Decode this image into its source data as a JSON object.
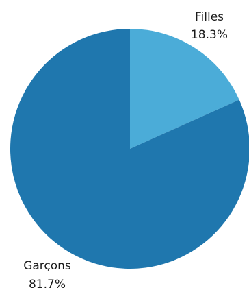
{
  "chart_data": {
    "type": "pie",
    "title": "",
    "start_angle": "12 o'clock, clockwise",
    "slices": [
      {
        "label": "Filles",
        "value": 18.3,
        "value_label": "18.3%",
        "color": "#4BACD8"
      },
      {
        "label": "Garçons",
        "value": 81.7,
        "value_label": "81.7%",
        "color": "#1F77AE"
      }
    ],
    "legend": "none"
  }
}
